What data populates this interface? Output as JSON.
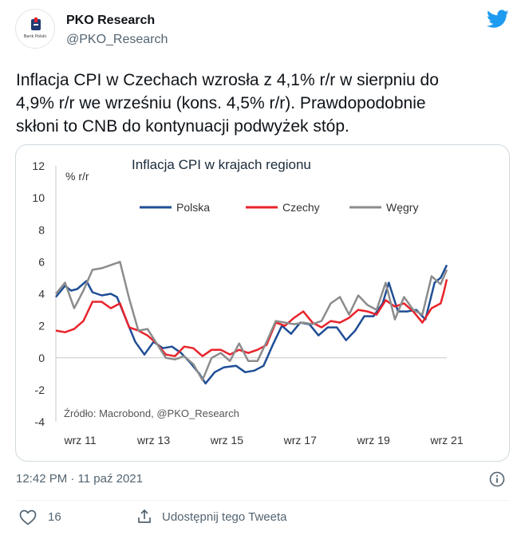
{
  "tweet": {
    "author_name": "PKO Research",
    "author_handle": "@PKO_Research",
    "avatar_caption": "Bank Polski",
    "text": "Inflacja CPI w Czechach wzrosła z 4,1% r/r w sierpniu do\n4,9% r/r we wrześniu (kons. 4,5% r/r). Prawdopodobnie\nskłoni to CNB do kontynuacji podwyżek stóp.",
    "timestamp": "12:42 PM · 11 paź 2021",
    "likes": "16",
    "share_label": "Udostępnij tego Tweeta"
  },
  "icons": {
    "platform": "twitter-bird-icon",
    "info": "info-icon",
    "like": "heart-icon",
    "share": "share-icon"
  },
  "colors": {
    "twitter_blue": "#1d9bf0",
    "polska": "#1f4e96",
    "czechy": "#e8232a",
    "wegry": "#8c8c8c"
  },
  "chart_data": {
    "type": "line",
    "title": "Inflacja CPI w krajach regionu",
    "ylabel": "% r/r",
    "source": "Źródło: Macrobond, @PKO_Research",
    "ylim": [
      -4,
      12
    ],
    "yticks": [
      "12",
      "10",
      "8",
      "6",
      "4",
      "2",
      "0",
      "-2",
      "-4"
    ],
    "xticks": [
      "wrz 11",
      "wrz 13",
      "wrz 15",
      "wrz 17",
      "wrz 19",
      "wrz 21"
    ],
    "x_start": "2011-01",
    "x_end": "2021-09",
    "legend_position": "top",
    "series": [
      {
        "name": "Polska",
        "color": "#1f4e96",
        "points": [
          [
            "2011-01",
            3.8
          ],
          [
            "2011-04",
            4.5
          ],
          [
            "2011-06",
            4.2
          ],
          [
            "2011-08",
            4.3
          ],
          [
            "2011-11",
            4.8
          ],
          [
            "2012-01",
            4.1
          ],
          [
            "2012-04",
            3.9
          ],
          [
            "2012-07",
            4.0
          ],
          [
            "2012-09",
            3.8
          ],
          [
            "2012-12",
            2.4
          ],
          [
            "2013-03",
            1.0
          ],
          [
            "2013-06",
            0.2
          ],
          [
            "2013-09",
            1.0
          ],
          [
            "2013-12",
            0.6
          ],
          [
            "2014-03",
            0.7
          ],
          [
            "2014-06",
            0.3
          ],
          [
            "2014-09",
            -0.3
          ],
          [
            "2014-12",
            -1.0
          ],
          [
            "2015-02",
            -1.6
          ],
          [
            "2015-05",
            -0.9
          ],
          [
            "2015-08",
            -0.6
          ],
          [
            "2015-12",
            -0.5
          ],
          [
            "2016-03",
            -0.9
          ],
          [
            "2016-06",
            -0.8
          ],
          [
            "2016-09",
            -0.5
          ],
          [
            "2016-12",
            0.8
          ],
          [
            "2017-03",
            2.0
          ],
          [
            "2017-06",
            1.5
          ],
          [
            "2017-09",
            2.2
          ],
          [
            "2017-12",
            2.1
          ],
          [
            "2018-03",
            1.4
          ],
          [
            "2018-06",
            1.9
          ],
          [
            "2018-09",
            1.9
          ],
          [
            "2018-12",
            1.1
          ],
          [
            "2019-03",
            1.7
          ],
          [
            "2019-06",
            2.6
          ],
          [
            "2019-09",
            2.6
          ],
          [
            "2019-12",
            3.4
          ],
          [
            "2020-02",
            4.7
          ],
          [
            "2020-05",
            2.9
          ],
          [
            "2020-08",
            2.9
          ],
          [
            "2020-11",
            3.0
          ],
          [
            "2021-02",
            2.4
          ],
          [
            "2021-05",
            4.7
          ],
          [
            "2021-07",
            5.0
          ],
          [
            "2021-09",
            5.8
          ]
        ]
      },
      {
        "name": "Czechy",
        "color": "#e8232a",
        "points": [
          [
            "2011-01",
            1.7
          ],
          [
            "2011-04",
            1.6
          ],
          [
            "2011-07",
            1.8
          ],
          [
            "2011-10",
            2.3
          ],
          [
            "2012-01",
            3.5
          ],
          [
            "2012-04",
            3.5
          ],
          [
            "2012-07",
            3.1
          ],
          [
            "2012-10",
            3.4
          ],
          [
            "2013-01",
            1.9
          ],
          [
            "2013-04",
            1.7
          ],
          [
            "2013-07",
            1.4
          ],
          [
            "2013-10",
            0.9
          ],
          [
            "2014-01",
            0.2
          ],
          [
            "2014-04",
            0.1
          ],
          [
            "2014-07",
            0.7
          ],
          [
            "2014-10",
            0.6
          ],
          [
            "2015-01",
            0.1
          ],
          [
            "2015-04",
            0.5
          ],
          [
            "2015-07",
            0.5
          ],
          [
            "2015-10",
            0.2
          ],
          [
            "2016-01",
            0.5
          ],
          [
            "2016-04",
            0.3
          ],
          [
            "2016-07",
            0.5
          ],
          [
            "2016-10",
            0.8
          ],
          [
            "2017-01",
            2.2
          ],
          [
            "2017-04",
            2.0
          ],
          [
            "2017-07",
            2.5
          ],
          [
            "2017-10",
            2.9
          ],
          [
            "2018-01",
            2.2
          ],
          [
            "2018-04",
            1.9
          ],
          [
            "2018-07",
            2.3
          ],
          [
            "2018-10",
            2.2
          ],
          [
            "2019-01",
            2.5
          ],
          [
            "2019-04",
            3.0
          ],
          [
            "2019-07",
            2.9
          ],
          [
            "2019-10",
            2.7
          ],
          [
            "2020-01",
            3.6
          ],
          [
            "2020-04",
            3.2
          ],
          [
            "2020-07",
            3.4
          ],
          [
            "2020-10",
            2.9
          ],
          [
            "2021-01",
            2.2
          ],
          [
            "2021-04",
            3.1
          ],
          [
            "2021-07",
            3.4
          ],
          [
            "2021-08",
            4.1
          ],
          [
            "2021-09",
            4.9
          ]
        ]
      },
      {
        "name": "Węgry",
        "color": "#8c8c8c",
        "points": [
          [
            "2011-01",
            4.0
          ],
          [
            "2011-04",
            4.7
          ],
          [
            "2011-07",
            3.1
          ],
          [
            "2011-10",
            4.2
          ],
          [
            "2012-01",
            5.5
          ],
          [
            "2012-04",
            5.6
          ],
          [
            "2012-07",
            5.8
          ],
          [
            "2012-10",
            6.0
          ],
          [
            "2013-01",
            3.7
          ],
          [
            "2013-04",
            1.7
          ],
          [
            "2013-07",
            1.8
          ],
          [
            "2013-10",
            0.9
          ],
          [
            "2014-01",
            0.0
          ],
          [
            "2014-04",
            -0.1
          ],
          [
            "2014-07",
            0.1
          ],
          [
            "2014-10",
            -0.4
          ],
          [
            "2015-01",
            -1.4
          ],
          [
            "2015-04",
            0.0
          ],
          [
            "2015-07",
            0.3
          ],
          [
            "2015-10",
            -0.2
          ],
          [
            "2016-01",
            0.9
          ],
          [
            "2016-04",
            -0.2
          ],
          [
            "2016-07",
            -0.2
          ],
          [
            "2016-10",
            1.0
          ],
          [
            "2017-01",
            2.3
          ],
          [
            "2017-04",
            2.2
          ],
          [
            "2017-07",
            2.1
          ],
          [
            "2017-10",
            2.2
          ],
          [
            "2018-01",
            2.1
          ],
          [
            "2018-04",
            2.3
          ],
          [
            "2018-07",
            3.4
          ],
          [
            "2018-10",
            3.8
          ],
          [
            "2019-01",
            2.7
          ],
          [
            "2019-04",
            3.9
          ],
          [
            "2019-07",
            3.3
          ],
          [
            "2019-10",
            3.0
          ],
          [
            "2020-01",
            4.7
          ],
          [
            "2020-04",
            2.4
          ],
          [
            "2020-07",
            3.8
          ],
          [
            "2020-10",
            3.0
          ],
          [
            "2021-01",
            2.7
          ],
          [
            "2021-04",
            5.1
          ],
          [
            "2021-07",
            4.6
          ],
          [
            "2021-09",
            5.5
          ]
        ]
      }
    ]
  }
}
